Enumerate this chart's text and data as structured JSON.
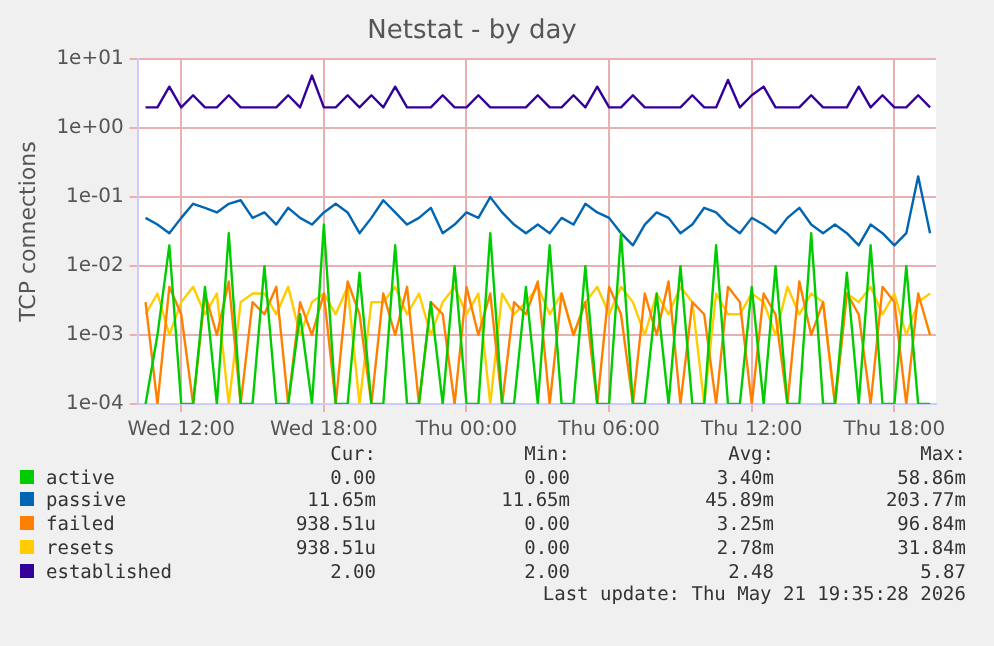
{
  "chart_data": {
    "type": "line",
    "title": "Netstat - by day",
    "ylabel": "TCP connections",
    "x": [
      "2026-05-20T10:30",
      "2026-05-20T11:00",
      "2026-05-20T11:30",
      "2026-05-20T12:00",
      "2026-05-20T12:30",
      "2026-05-20T13:00",
      "2026-05-20T13:30",
      "2026-05-20T14:00",
      "2026-05-20T14:30",
      "2026-05-20T15:00",
      "2026-05-20T15:30",
      "2026-05-20T16:00",
      "2026-05-20T16:30",
      "2026-05-20T17:00",
      "2026-05-20T17:30",
      "2026-05-20T18:00",
      "2026-05-20T18:30",
      "2026-05-20T19:00",
      "2026-05-20T19:30",
      "2026-05-20T20:00",
      "2026-05-20T20:30",
      "2026-05-20T21:00",
      "2026-05-20T21:30",
      "2026-05-20T22:00",
      "2026-05-20T22:30",
      "2026-05-20T23:00",
      "2026-05-20T23:30",
      "2026-05-21T00:00",
      "2026-05-21T00:30",
      "2026-05-21T01:00",
      "2026-05-21T01:30",
      "2026-05-21T02:00",
      "2026-05-21T02:30",
      "2026-05-21T03:00",
      "2026-05-21T03:30",
      "2026-05-21T04:00",
      "2026-05-21T04:30",
      "2026-05-21T05:00",
      "2026-05-21T05:30",
      "2026-05-21T06:00",
      "2026-05-21T06:30",
      "2026-05-21T07:00",
      "2026-05-21T07:30",
      "2026-05-21T08:00",
      "2026-05-21T08:30",
      "2026-05-21T09:00",
      "2026-05-21T09:30",
      "2026-05-21T10:00",
      "2026-05-21T10:30",
      "2026-05-21T11:00",
      "2026-05-21T11:30",
      "2026-05-21T12:00",
      "2026-05-21T12:30",
      "2026-05-21T13:00",
      "2026-05-21T13:30",
      "2026-05-21T14:00",
      "2026-05-21T14:30",
      "2026-05-21T15:00",
      "2026-05-21T15:30",
      "2026-05-21T16:00",
      "2026-05-21T16:30",
      "2026-05-21T17:00",
      "2026-05-21T17:30",
      "2026-05-21T18:00",
      "2026-05-21T18:30",
      "2026-05-21T19:00",
      "2026-05-21T19:30"
    ],
    "xlim": [
      "2026-05-20T10:10",
      "2026-05-21T19:45"
    ],
    "xticks": [
      {
        "value": "2026-05-20T12:00",
        "label": "Wed 12:00"
      },
      {
        "value": "2026-05-20T18:00",
        "label": "Wed 18:00"
      },
      {
        "value": "2026-05-21T00:00",
        "label": "Thu 00:00"
      },
      {
        "value": "2026-05-21T06:00",
        "label": "Thu 06:00"
      },
      {
        "value": "2026-05-21T12:00",
        "label": "Thu 12:00"
      },
      {
        "value": "2026-05-21T18:00",
        "label": "Thu 18:00"
      }
    ],
    "ylim": [
      0.0001,
      10
    ],
    "yticks": [
      {
        "value": 0.0001,
        "label": "1e-04"
      },
      {
        "value": 0.001,
        "label": "1e-03"
      },
      {
        "value": 0.01,
        "label": "1e-02"
      },
      {
        "value": 0.1,
        "label": "1e-01"
      },
      {
        "value": 1,
        "label": "1e+00"
      },
      {
        "value": 10,
        "label": "1e+01"
      }
    ],
    "log": "y",
    "grid": true,
    "legend": "bottom",
    "marker": "none",
    "line_style": "solid",
    "series": [
      {
        "name": "active",
        "color": "#00cc00",
        "values": [
          0.0001,
          0.001,
          0.02,
          0.0001,
          0.0001,
          0.005,
          0.0001,
          0.03,
          0.0001,
          0.0001,
          0.01,
          0.0001,
          0.0001,
          0.002,
          0.0001,
          0.04,
          0.0001,
          0.0001,
          0.008,
          0.0001,
          0.0001,
          0.02,
          0.0001,
          0.0001,
          0.003,
          0.0001,
          0.01,
          0.0001,
          0.0001,
          0.03,
          0.0001,
          0.0001,
          0.005,
          0.0001,
          0.02,
          0.0001,
          0.0001,
          0.01,
          0.0001,
          0.0001,
          0.03,
          0.0001,
          0.0001,
          0.004,
          0.0001,
          0.01,
          0.0001,
          0.0001,
          0.02,
          0.0001,
          0.0001,
          0.005,
          0.0001,
          0.01,
          0.0001,
          0.0001,
          0.03,
          0.0001,
          0.0001,
          0.008,
          0.0001,
          0.02,
          0.0001,
          0.0001,
          0.01,
          0.0001,
          0.0001
        ]
      },
      {
        "name": "passive",
        "color": "#0066b3",
        "values": [
          0.05,
          0.04,
          0.03,
          0.05,
          0.08,
          0.07,
          0.06,
          0.08,
          0.09,
          0.05,
          0.06,
          0.04,
          0.07,
          0.05,
          0.04,
          0.06,
          0.08,
          0.06,
          0.03,
          0.05,
          0.09,
          0.06,
          0.04,
          0.05,
          0.07,
          0.03,
          0.04,
          0.06,
          0.05,
          0.1,
          0.06,
          0.04,
          0.03,
          0.04,
          0.03,
          0.05,
          0.04,
          0.08,
          0.06,
          0.05,
          0.03,
          0.02,
          0.04,
          0.06,
          0.05,
          0.03,
          0.04,
          0.07,
          0.06,
          0.04,
          0.03,
          0.05,
          0.04,
          0.03,
          0.05,
          0.07,
          0.04,
          0.03,
          0.04,
          0.03,
          0.02,
          0.04,
          0.03,
          0.02,
          0.03,
          0.2,
          0.03
        ]
      },
      {
        "name": "failed",
        "color": "#ff8000",
        "values": [
          0.003,
          0.0001,
          0.005,
          0.002,
          0.0001,
          0.004,
          0.001,
          0.006,
          0.0001,
          0.003,
          0.002,
          0.005,
          0.0001,
          0.003,
          0.001,
          0.004,
          0.0001,
          0.006,
          0.002,
          0.0001,
          0.004,
          0.001,
          0.005,
          0.0001,
          0.003,
          0.002,
          0.0001,
          0.005,
          0.001,
          0.004,
          0.0001,
          0.003,
          0.002,
          0.006,
          0.0001,
          0.004,
          0.001,
          0.003,
          0.0001,
          0.005,
          0.002,
          0.0001,
          0.004,
          0.001,
          0.006,
          0.0001,
          0.003,
          0.002,
          0.0001,
          0.005,
          0.003,
          0.0001,
          0.004,
          0.002,
          0.0001,
          0.006,
          0.001,
          0.003,
          0.0001,
          0.004,
          0.002,
          0.0001,
          0.005,
          0.003,
          0.0001,
          0.004,
          0.001
        ]
      },
      {
        "name": "resets",
        "color": "#ffcc00",
        "values": [
          0.002,
          0.004,
          0.001,
          0.003,
          0.005,
          0.002,
          0.004,
          0.0001,
          0.003,
          0.004,
          0.004,
          0.002,
          0.005,
          0.001,
          0.003,
          0.004,
          0.002,
          0.005,
          0.0001,
          0.003,
          0.003,
          0.005,
          0.002,
          0.004,
          0.001,
          0.003,
          0.005,
          0.002,
          0.004,
          0.0001,
          0.004,
          0.002,
          0.003,
          0.005,
          0.002,
          0.004,
          0.001,
          0.003,
          0.005,
          0.002,
          0.005,
          0.003,
          0.001,
          0.004,
          0.002,
          0.005,
          0.003,
          0.0001,
          0.004,
          0.002,
          0.002,
          0.004,
          0.003,
          0.001,
          0.005,
          0.002,
          0.004,
          0.003,
          0.0001,
          0.004,
          0.003,
          0.005,
          0.002,
          0.004,
          0.001,
          0.003,
          0.004
        ]
      },
      {
        "name": "established",
        "color": "#330099",
        "values": [
          2,
          2,
          4,
          2,
          3,
          2,
          2,
          3,
          2,
          2,
          2,
          2,
          3,
          2,
          5.8,
          2,
          2,
          3,
          2,
          3,
          2,
          4,
          2,
          2,
          2,
          3,
          2,
          2,
          3,
          2,
          2,
          2,
          2,
          3,
          2,
          2,
          3,
          2,
          4,
          2,
          2,
          3,
          2,
          2,
          2,
          2,
          3,
          2,
          2,
          5,
          2,
          3,
          4,
          2,
          2,
          2,
          3,
          2,
          2,
          2,
          4,
          2,
          3,
          2,
          2,
          3,
          2
        ]
      }
    ],
    "annotations": [
      "Cur:",
      "Min:",
      "Avg:",
      "Max:",
      "0.00",
      "0.00",
      "3.40m",
      "58.86m",
      "11.65m",
      "11.65m",
      "45.89m",
      "203.77m",
      "938.51u",
      "0.00",
      "3.25m",
      "96.84m",
      "938.51u",
      "0.00",
      "2.78m",
      "31.84m",
      "2.00",
      "2.00",
      "2.48",
      "5.87",
      "Last update: Thu May 21 19:35:28 2026"
    ]
  }
}
